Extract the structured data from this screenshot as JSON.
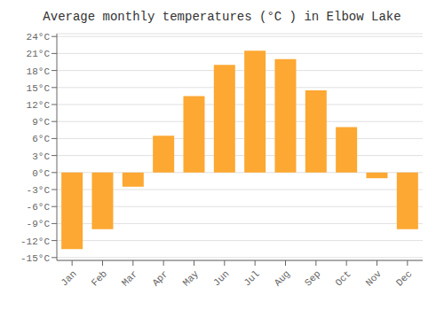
{
  "chart_data": {
    "type": "bar",
    "title": "Average monthly temperatures (°C ) in Elbow Lake",
    "categories": [
      "Jan",
      "Feb",
      "Mar",
      "Apr",
      "May",
      "Jun",
      "Jul",
      "Aug",
      "Sep",
      "Oct",
      "Nov",
      "Dec"
    ],
    "values": [
      -13.5,
      -10.0,
      -2.5,
      6.5,
      13.5,
      19.0,
      21.5,
      20.0,
      14.5,
      8.0,
      -1.0,
      -10.0
    ],
    "color": "#FCA832",
    "ylim": [
      -15.5,
      24.5
    ],
    "yticks": [
      {
        "value": -15,
        "label": "-15°C"
      },
      {
        "value": -12,
        "label": "-12°C"
      },
      {
        "value": -9,
        "label": "-9°C"
      },
      {
        "value": -6,
        "label": "-6°C"
      },
      {
        "value": -3,
        "label": "-3°C"
      },
      {
        "value": 0,
        "label": "0°C"
      },
      {
        "value": 3,
        "label": "3°C"
      },
      {
        "value": 6,
        "label": "6°C"
      },
      {
        "value": 9,
        "label": "9°C"
      },
      {
        "value": 12,
        "label": "12°C"
      },
      {
        "value": 15,
        "label": "15°C"
      },
      {
        "value": 18,
        "label": "18°C"
      },
      {
        "value": 21,
        "label": "21°C"
      },
      {
        "value": 24,
        "label": "24°C"
      }
    ],
    "grid": true
  }
}
